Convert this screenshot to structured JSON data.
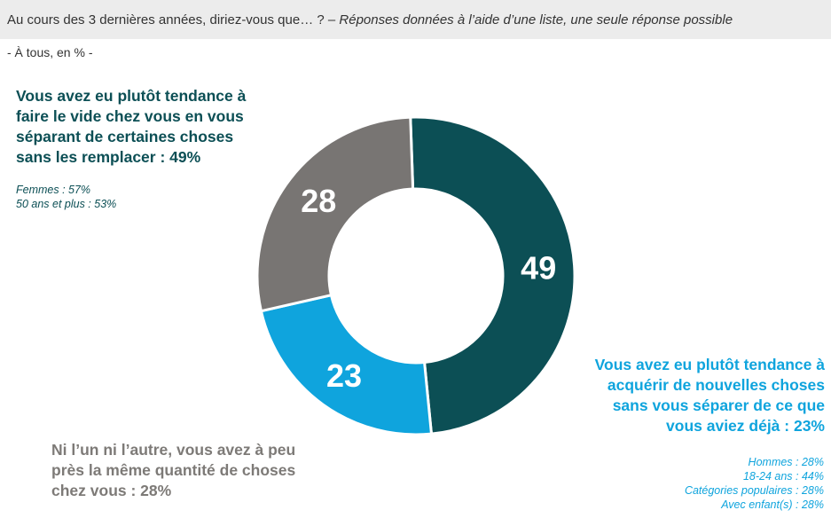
{
  "header": {
    "question": "Au cours des 3 dernières années, diriez-vous que… ?",
    "dash": " – ",
    "note": "Réponses données à l’aide d’une liste, une seule réponse possible"
  },
  "subtitle": "- À tous, en % -",
  "chart_data": {
    "type": "pie",
    "subtype": "donut",
    "title": "",
    "categories": [
      "Vous avez eu plutôt tendance à faire le vide chez vous en vous séparant de certaines choses sans les remplacer : 49%",
      "Vous avez eu plutôt tendance à acquérir de nouvelles choses sans vous séparer de ce que vous aviez déjà : 23%",
      "Ni l’un ni l’autre, vous avez à peu près la même quantité de choses chez vous : 28%"
    ],
    "values": [
      49,
      23,
      28
    ],
    "value_labels": [
      "49",
      "23",
      "28"
    ],
    "colors": [
      "#0c4f55",
      "#0fa4dd",
      "#787573"
    ],
    "legend": "none"
  },
  "labels": {
    "dark": {
      "lines": [
        "Vous avez eu plutôt tendance à",
        "faire le vide chez vous en vous",
        "séparant de certaines choses",
        "sans les remplacer : 49%"
      ],
      "details": [
        "Femmes : 57%",
        "50 ans et plus : 53%"
      ]
    },
    "blue": {
      "lines": [
        "Vous avez eu plutôt tendance à",
        "acquérir de nouvelles choses",
        "sans vous séparer de ce que",
        "vous aviez déjà : 23%"
      ],
      "details": [
        "Hommes : 28%",
        "18-24 ans : 44%",
        "Catégories populaires : 28%",
        "Avec enfant(s) : 28%"
      ]
    },
    "grey": {
      "lines": [
        "Ni l’un ni l’autre, vous avez à peu",
        "près la même quantité de choses",
        "chez vous : 28%"
      ]
    }
  }
}
